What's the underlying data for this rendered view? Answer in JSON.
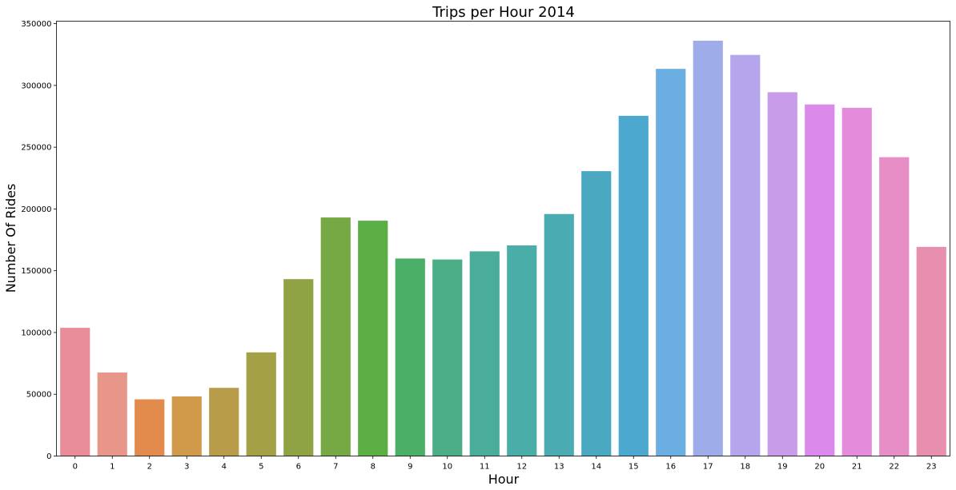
{
  "chart_data": {
    "type": "bar",
    "title": "Trips per Hour 2014",
    "xlabel": "Hour",
    "ylabel": "Number Of Rides",
    "categories": [
      "0",
      "1",
      "2",
      "3",
      "4",
      "5",
      "6",
      "7",
      "8",
      "9",
      "10",
      "11",
      "12",
      "13",
      "14",
      "15",
      "16",
      "17",
      "18",
      "19",
      "20",
      "21",
      "22",
      "23"
    ],
    "values": [
      103800,
      67600,
      45900,
      48300,
      55200,
      83900,
      143200,
      193100,
      190500,
      159900,
      159100,
      165700,
      170500,
      195900,
      230600,
      275400,
      313400,
      336200,
      324700,
      294500,
      284600,
      281900,
      241900,
      169300
    ],
    "ylim": [
      0,
      352000
    ],
    "yticks": [
      "0",
      "50000",
      "100000",
      "150000",
      "200000",
      "250000",
      "300000",
      "350000"
    ],
    "ytick_values": [
      0,
      50000,
      100000,
      150000,
      200000,
      250000,
      300000,
      350000
    ],
    "grid": false,
    "colors": [
      "#ea8d9b",
      "#e8968a",
      "#e38b4c",
      "#d19a4a",
      "#b99c4a",
      "#a3a046",
      "#8fa344",
      "#76a843",
      "#5baf45",
      "#4caf68",
      "#4cae87",
      "#4aad99",
      "#4aada8",
      "#4aabb3",
      "#4aa9c1",
      "#4ca8ce",
      "#6aaee2",
      "#9eace9",
      "#b5a5ec",
      "#c99ce9",
      "#db8aec",
      "#e48bdb",
      "#e68ec5",
      "#e88fb0"
    ]
  }
}
